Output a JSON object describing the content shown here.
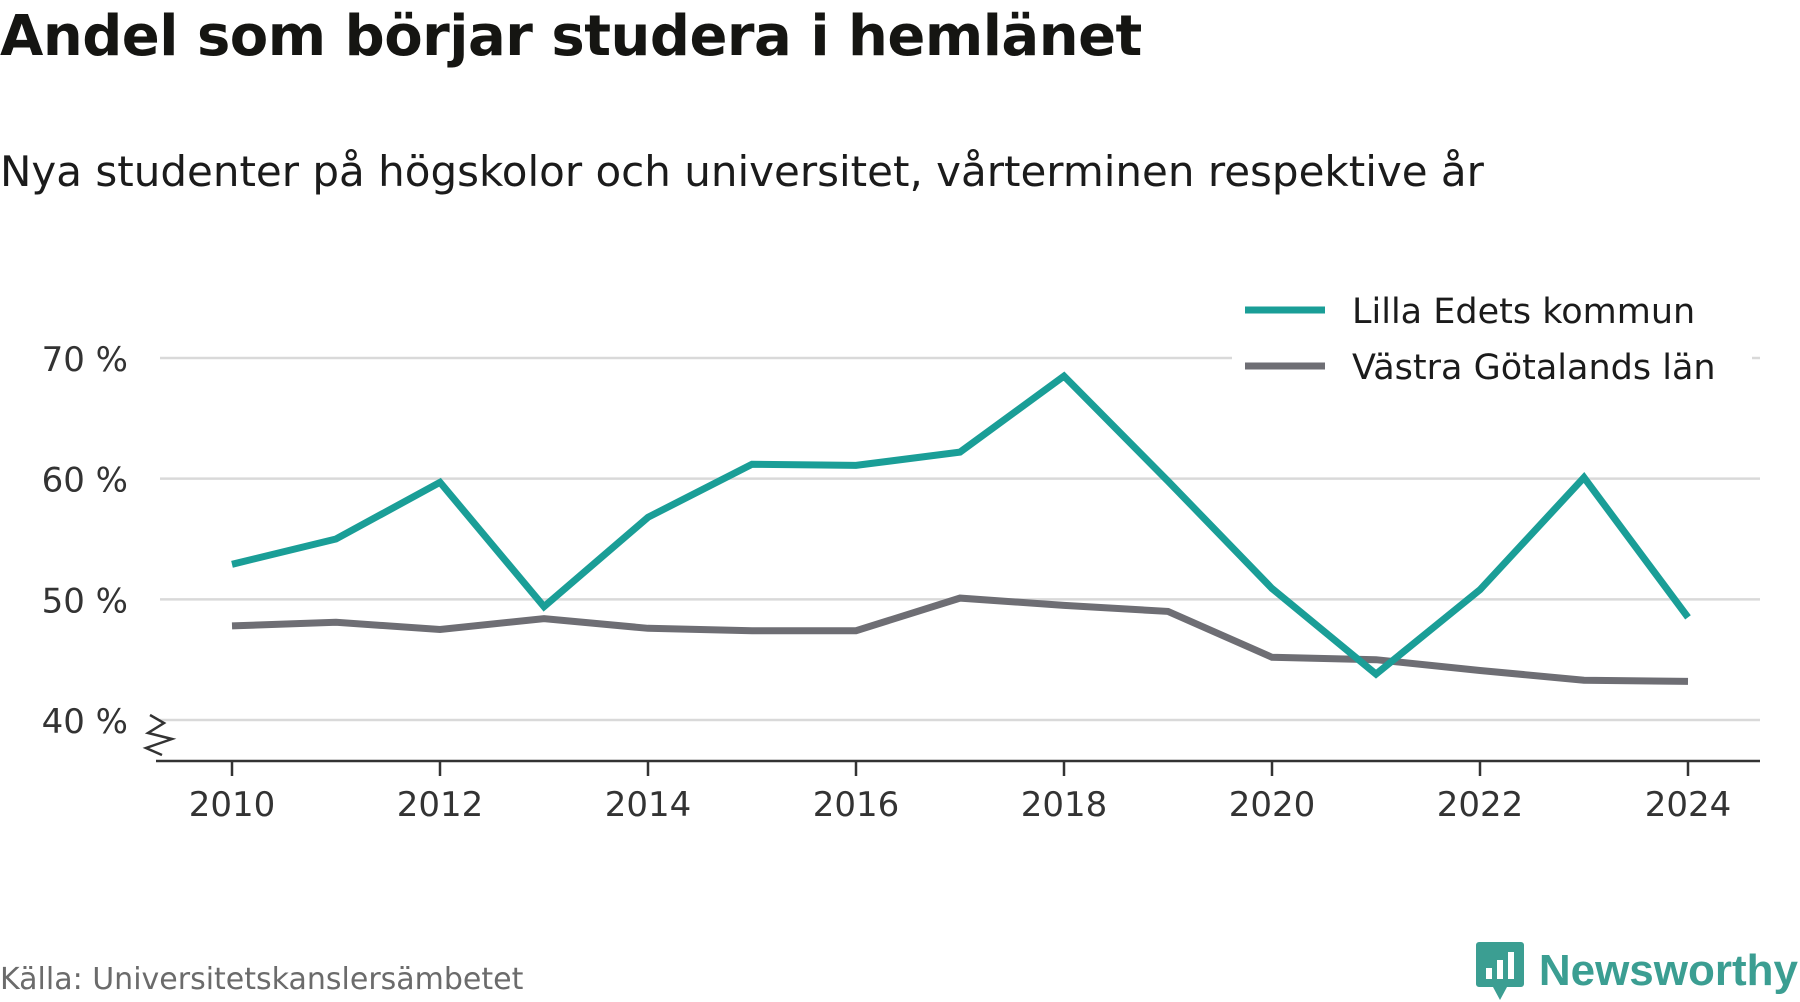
{
  "title": "Andel som börjar studera i hemlänet",
  "subtitle": "Nya studenter på högskolor och universitet, vårterminen respektive år",
  "source": "Källa: Universitetskanslersämbetet",
  "logo": {
    "text": "Newsworthy",
    "icon": "newsworthy-logo-icon"
  },
  "colors": {
    "lilla_edet": "#1a9e97",
    "vastra_gotaland": "#6e6e74",
    "grid": "#d9d9d9",
    "axis": "#333333",
    "logo": "#3b9e92"
  },
  "chart_data": {
    "type": "line",
    "x": [
      2010,
      2011,
      2012,
      2013,
      2014,
      2015,
      2016,
      2017,
      2018,
      2019,
      2020,
      2021,
      2022,
      2023,
      2024
    ],
    "series": [
      {
        "name": "Lilla Edets kommun",
        "color": "#1a9e97",
        "values": [
          52.9,
          55.0,
          59.7,
          49.4,
          56.8,
          61.2,
          61.1,
          62.2,
          68.5,
          59.8,
          50.9,
          43.8,
          50.8,
          60.1,
          48.5
        ]
      },
      {
        "name": "Västra Götalands län",
        "color": "#6e6e74",
        "values": [
          47.8,
          48.1,
          47.5,
          48.4,
          47.6,
          47.4,
          47.4,
          50.1,
          49.5,
          49.0,
          45.2,
          45.0,
          44.1,
          43.3,
          43.2
        ]
      }
    ],
    "xticks": [
      "2010",
      "2012",
      "2014",
      "2016",
      "2018",
      "2020",
      "2022",
      "2024"
    ],
    "yticks": [
      "40 %",
      "50 %",
      "60 %",
      "70 %"
    ],
    "ytick_values": [
      40,
      50,
      60,
      70
    ],
    "ylim": [
      40,
      70
    ],
    "y_axis_break": true,
    "grid": true,
    "legend": "top-right",
    "xlabel": "",
    "ylabel": ""
  }
}
